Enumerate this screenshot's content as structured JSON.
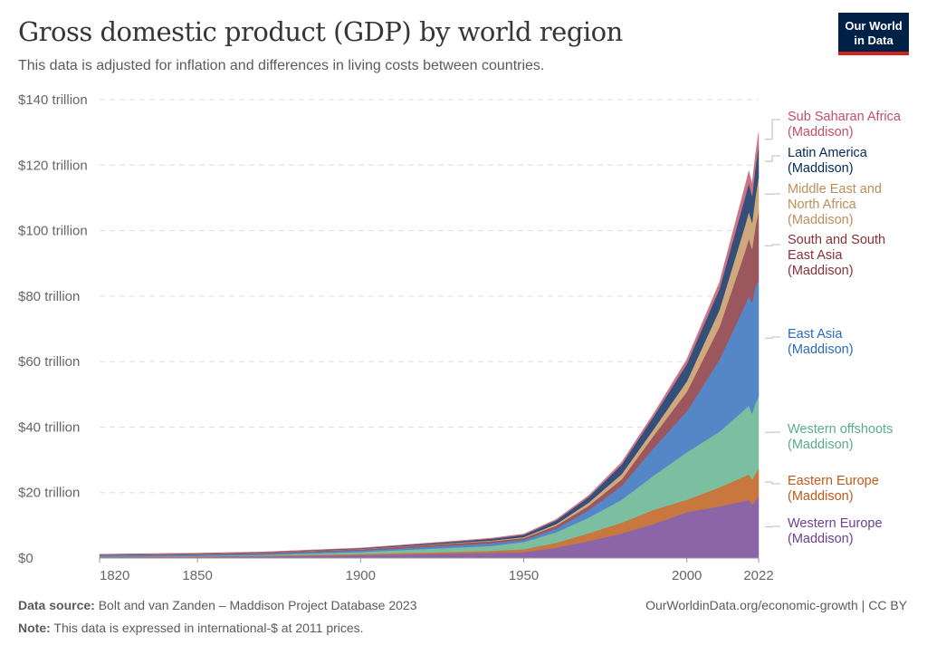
{
  "header": {
    "title": "Gross domestic product (GDP) by world region",
    "subtitle": "This data is adjusted for inflation and differences in living costs between countries.",
    "logo": "Our World in Data"
  },
  "footer": {
    "source_label": "Data source:",
    "source": "Bolt and van Zanden – Maddison Project Database 2023",
    "note_label": "Note:",
    "note": "This data is expressed in international-$ at 2011 prices.",
    "link": "OurWorldinData.org/economic-growth | CC BY"
  },
  "chart_data": {
    "type": "area",
    "stacked": true,
    "title": "Gross domestic product (GDP) by world region",
    "xlim": [
      1820,
      2022
    ],
    "ylim": [
      0,
      140
    ],
    "grid": "horizontal dashed",
    "x_ticks": [
      "1820",
      "1850",
      "1900",
      "1950",
      "2000",
      "2022"
    ],
    "y_ticks": [
      "$0",
      "$20 trillion",
      "$40 trillion",
      "$60 trillion",
      "$80 trillion",
      "$100 trillion",
      "$120 trillion",
      "$140 trillion"
    ],
    "y_tick_values": [
      0,
      20,
      40,
      60,
      80,
      100,
      120,
      140
    ],
    "x_tick_values": [
      1820,
      1850,
      1900,
      1950,
      2000,
      2022
    ],
    "legend": "right, inline labels",
    "x": [
      1820,
      1850,
      1870,
      1900,
      1913,
      1929,
      1940,
      1950,
      1960,
      1970,
      1980,
      1990,
      2000,
      2010,
      2018,
      2019,
      2020,
      2021,
      2022
    ],
    "series": [
      {
        "name": "Western Europe",
        "sub": "(Maddison)",
        "color": "#8c65a8",
        "label_color": "#6d3e91",
        "values": [
          0.25,
          0.4,
          0.55,
          0.9,
          1.1,
          1.4,
          1.6,
          1.8,
          3.2,
          5.2,
          7.5,
          10.5,
          14.0,
          15.8,
          17.5,
          17.8,
          16.3,
          17.6,
          19.0
        ]
      },
      {
        "name": "Eastern Europe",
        "sub": "(Maddison)",
        "color": "#c8773f",
        "label_color": "#c05917",
        "values": [
          0.1,
          0.15,
          0.2,
          0.35,
          0.45,
          0.5,
          0.6,
          0.9,
          1.5,
          2.4,
          3.3,
          4.3,
          3.8,
          5.8,
          7.6,
          7.8,
          7.6,
          8.1,
          8.4
        ]
      },
      {
        "name": "Western offshoots",
        "sub": "(Maddison)",
        "color": "#7bbfa0",
        "label_color": "#58ac8c",
        "values": [
          0.02,
          0.1,
          0.2,
          0.6,
          0.9,
          1.3,
          1.5,
          2.2,
          3.2,
          4.8,
          7.0,
          10.5,
          14.5,
          17.0,
          20.5,
          21.0,
          20.2,
          21.5,
          22.0
        ]
      },
      {
        "name": "East Asia",
        "sub": "(Maddison)",
        "color": "#5587c8",
        "label_color": "#286bbb",
        "values": [
          0.45,
          0.4,
          0.4,
          0.45,
          0.55,
          0.7,
          0.8,
          0.6,
          1.1,
          2.3,
          4.2,
          8.5,
          12.5,
          22.0,
          32.0,
          33.5,
          33.8,
          35.5,
          35.5
        ]
      },
      {
        "name": "South and South East Asia",
        "sub": "(Maddison)",
        "color": "#9b565e",
        "label_color": "#883039",
        "values": [
          0.25,
          0.3,
          0.32,
          0.4,
          0.5,
          0.6,
          0.65,
          0.6,
          0.9,
          1.3,
          2.0,
          3.8,
          6.0,
          10.0,
          16.5,
          17.5,
          16.5,
          18.5,
          21.0
        ]
      },
      {
        "name": "Middle East and North Africa",
        "sub": "(Maddison)",
        "color": "#cfa87b",
        "label_color": "#bc8e5a",
        "values": [
          0.04,
          0.05,
          0.06,
          0.1,
          0.12,
          0.16,
          0.2,
          0.3,
          0.5,
          1.0,
          1.6,
          2.0,
          3.2,
          5.2,
          8.0,
          8.2,
          8.0,
          9.0,
          10.5
        ]
      },
      {
        "name": "Latin America",
        "sub": "(Maddison)",
        "color": "#344f7a",
        "label_color": "#00295b",
        "values": [
          0.03,
          0.05,
          0.08,
          0.2,
          0.3,
          0.4,
          0.55,
          0.7,
          1.1,
          1.7,
          2.9,
          3.9,
          5.3,
          6.4,
          8.7,
          8.8,
          8.2,
          9.0,
          9.5
        ]
      },
      {
        "name": "Sub Saharan Africa",
        "sub": "(Maddison)",
        "color": "#cd7385",
        "label_color": "#c15065",
        "values": [
          0.05,
          0.06,
          0.07,
          0.09,
          0.11,
          0.15,
          0.18,
          0.25,
          0.35,
          0.5,
          0.75,
          0.9,
          1.4,
          2.0,
          3.5,
          3.6,
          3.6,
          3.8,
          4.0
        ]
      }
    ]
  }
}
